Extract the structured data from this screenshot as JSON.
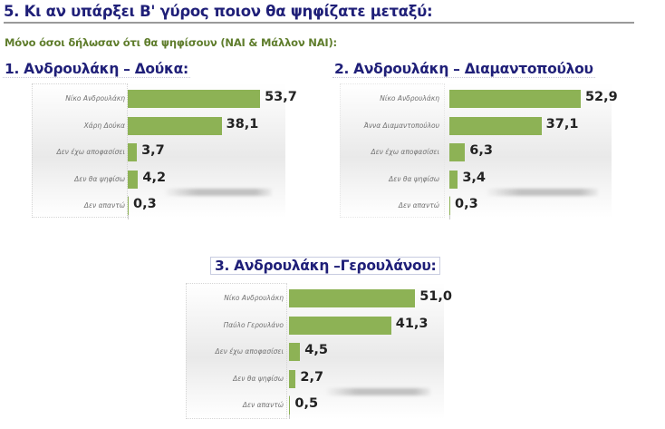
{
  "heading": "5. Κι αν υπάρξει Β' γύρος ποιον θα ψηφίζατε μεταξύ:",
  "subheading": "Μόνο όσοι δήλωσαν ότι θα ψηφίσουν (ΝΑΙ & Μάλλον ΝΑΙ):",
  "colors": {
    "bar": "#8db255",
    "title": "#1f1f78",
    "subtitle": "#5f7d2c"
  },
  "charts": [
    {
      "title": "1. Ανδρουλάκη – Δούκα:",
      "categories": [
        "Νίκο Ανδρουλάκη",
        "Χάρη Δούκα",
        "Δεν έχω αποφασίσει",
        "Δεν θα ψηφίσω",
        "Δεν απαντώ"
      ],
      "value_labels": [
        "53,7",
        "38,1",
        "3,7",
        "4,2",
        "0,3"
      ]
    },
    {
      "title": "2. Ανδρουλάκη – Διαμαντοπούλου",
      "categories": [
        "Νίκο Ανδρουλάκη",
        "Άννα Διαμαντοπούλου",
        "Δεν έχω αποφασίσει",
        "Δεν θα ψηφίσω",
        "Δεν απαντώ"
      ],
      "value_labels": [
        "52,9",
        "37,1",
        "6,3",
        "3,4",
        "0,3"
      ]
    },
    {
      "title": "3. Ανδρουλάκη –Γερουλάνου:",
      "categories": [
        "Νίκο Ανδρουλάκη",
        "Παύλο Γερουλάνο",
        "Δεν έχω αποφασίσει",
        "Δεν θα ψηφίσω",
        "Δεν απαντώ"
      ],
      "value_labels": [
        "51,0",
        "41,3",
        "4,5",
        "2,7",
        "0,5"
      ]
    }
  ],
  "chart_data": [
    {
      "type": "bar",
      "orientation": "horizontal",
      "title": "1. Ανδρουλάκη – Δούκα:",
      "categories": [
        "Νίκο Ανδρουλάκη",
        "Χάρη Δούκα",
        "Δεν έχω αποφασίσει",
        "Δεν θα ψηφίσω",
        "Δεν απαντώ"
      ],
      "values": [
        53.7,
        38.1,
        3.7,
        4.2,
        0.3
      ],
      "xlabel": "",
      "ylabel": "",
      "grid": false,
      "legend": null
    },
    {
      "type": "bar",
      "orientation": "horizontal",
      "title": "2. Ανδρουλάκη – Διαμαντοπούλου",
      "categories": [
        "Νίκο Ανδρουλάκη",
        "Άννα Διαμαντοπούλου",
        "Δεν έχω αποφασίσει",
        "Δεν θα ψηφίσω",
        "Δεν απαντώ"
      ],
      "values": [
        52.9,
        37.1,
        6.3,
        3.4,
        0.3
      ],
      "xlabel": "",
      "ylabel": "",
      "grid": false,
      "legend": null
    },
    {
      "type": "bar",
      "orientation": "horizontal",
      "title": "3. Ανδρουλάκη –Γερουλάνου:",
      "categories": [
        "Νίκο Ανδρουλάκη",
        "Παύλο Γερουλάνο",
        "Δεν έχω αποφασίσει",
        "Δεν θα ψηφίσω",
        "Δεν απαντώ"
      ],
      "values": [
        51.0,
        41.3,
        4.5,
        2.7,
        0.5
      ],
      "xlabel": "",
      "ylabel": "",
      "grid": false,
      "legend": null
    }
  ]
}
